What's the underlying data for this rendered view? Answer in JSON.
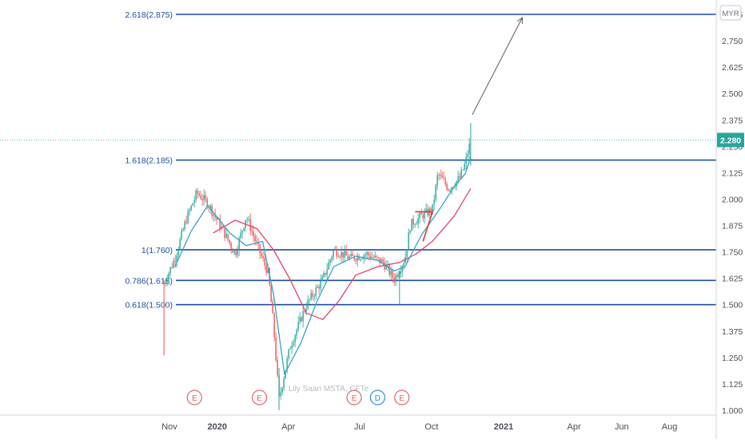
{
  "chart_data": {
    "type": "candlestick",
    "currency": "MYR",
    "last_price": {
      "value": 2.28,
      "label": "2.280"
    },
    "y_ticks": [
      "1.000",
      "1.125",
      "1.250",
      "1.375",
      "1.500",
      "1.625",
      "1.750",
      "1.875",
      "2.000",
      "2.125",
      "2.250",
      "2.375",
      "2.500",
      "2.625",
      "2.750",
      "2.875"
    ],
    "y_tick_values": [
      1.0,
      1.125,
      1.25,
      1.375,
      1.5,
      1.625,
      1.75,
      1.875,
      2.0,
      2.125,
      2.25,
      2.375,
      2.5,
      2.625,
      2.75,
      2.875
    ],
    "ylim": [
      0.98,
      2.93
    ],
    "x_labels": [
      {
        "label": "Nov",
        "date": "2019-11-01",
        "bold": false
      },
      {
        "label": "2020",
        "date": "2020-01-01",
        "bold": true
      },
      {
        "label": "Apr",
        "date": "2020-04-01",
        "bold": false
      },
      {
        "label": "Jul",
        "date": "2020-07-01",
        "bold": false
      },
      {
        "label": "Oct",
        "date": "2020-10-01",
        "bold": false
      },
      {
        "label": "2021",
        "date": "2021-01-01",
        "bold": true
      },
      {
        "label": "Apr",
        "date": "2021-04-01",
        "bold": false
      },
      {
        "label": "Jun",
        "date": "2021-06-01",
        "bold": false
      },
      {
        "label": "Aug",
        "date": "2021-08-01",
        "bold": false
      }
    ],
    "fib_levels": [
      {
        "label": "2.618(2.875)",
        "value": 2.875
      },
      {
        "label": "1.618(2.185)",
        "value": 2.185
      },
      {
        "label": "1(1.760)",
        "value": 1.76
      },
      {
        "label": "0.786(1.615)",
        "value": 1.615
      },
      {
        "label": "0.618(1.500)",
        "value": 1.5
      }
    ],
    "price_path": [
      [
        "2019-10-25",
        1.6
      ],
      [
        "2019-11-08",
        1.72
      ],
      [
        "2019-11-22",
        1.9
      ],
      [
        "2019-12-06",
        2.03
      ],
      [
        "2019-12-20",
        1.98
      ],
      [
        "2020-01-10",
        1.84
      ],
      [
        "2020-01-24",
        1.74
      ],
      [
        "2020-02-07",
        1.92
      ],
      [
        "2020-02-21",
        1.78
      ],
      [
        "2020-03-06",
        1.65
      ],
      [
        "2020-03-13",
        1.4
      ],
      [
        "2020-03-20",
        1.05
      ],
      [
        "2020-04-03",
        1.3
      ],
      [
        "2020-04-24",
        1.5
      ],
      [
        "2020-05-15",
        1.62
      ],
      [
        "2020-05-29",
        1.76
      ],
      [
        "2020-06-19",
        1.72
      ],
      [
        "2020-07-10",
        1.74
      ],
      [
        "2020-07-31",
        1.7
      ],
      [
        "2020-08-14",
        1.62
      ],
      [
        "2020-08-28",
        1.72
      ],
      [
        "2020-09-04",
        1.88
      ],
      [
        "2020-09-18",
        1.92
      ],
      [
        "2020-10-02",
        1.95
      ],
      [
        "2020-10-09",
        2.12
      ],
      [
        "2020-10-23",
        2.05
      ],
      [
        "2020-11-06",
        2.1
      ],
      [
        "2020-11-13",
        2.17
      ],
      [
        "2020-11-20",
        2.28
      ]
    ],
    "ma_fast": [
      [
        "2019-11-08",
        1.68
      ],
      [
        "2019-11-29",
        1.85
      ],
      [
        "2019-12-20",
        1.97
      ],
      [
        "2020-01-17",
        1.84
      ],
      [
        "2020-02-07",
        1.78
      ],
      [
        "2020-02-28",
        1.8
      ],
      [
        "2020-03-13",
        1.55
      ],
      [
        "2020-03-27",
        1.17
      ],
      [
        "2020-04-17",
        1.32
      ],
      [
        "2020-05-08",
        1.52
      ],
      [
        "2020-05-29",
        1.68
      ],
      [
        "2020-06-26",
        1.73
      ],
      [
        "2020-07-24",
        1.71
      ],
      [
        "2020-08-14",
        1.66
      ],
      [
        "2020-08-28",
        1.68
      ],
      [
        "2020-09-18",
        1.83
      ],
      [
        "2020-10-09",
        1.94
      ],
      [
        "2020-10-30",
        2.06
      ],
      [
        "2020-11-13",
        2.12
      ],
      [
        "2020-11-20",
        2.2
      ]
    ],
    "ma_slow": [
      [
        "2019-12-27",
        1.84
      ],
      [
        "2020-01-24",
        1.9
      ],
      [
        "2020-02-21",
        1.86
      ],
      [
        "2020-03-13",
        1.76
      ],
      [
        "2020-04-03",
        1.62
      ],
      [
        "2020-04-24",
        1.46
      ],
      [
        "2020-05-15",
        1.43
      ],
      [
        "2020-06-05",
        1.52
      ],
      [
        "2020-06-26",
        1.64
      ],
      [
        "2020-07-24",
        1.68
      ],
      [
        "2020-08-21",
        1.7
      ],
      [
        "2020-09-11",
        1.74
      ],
      [
        "2020-10-02",
        1.8
      ],
      [
        "2020-10-30",
        1.92
      ],
      [
        "2020-11-20",
        2.05
      ]
    ],
    "earnings_markers": [
      {
        "label": "E",
        "date": "2019-12-03",
        "color": "#e4636b"
      },
      {
        "label": "E",
        "date": "2020-02-24",
        "color": "#e4636b"
      },
      {
        "label": "E",
        "date": "2020-06-24",
        "color": "#e4636b"
      },
      {
        "label": "D",
        "date": "2020-07-24",
        "color": "#2e8fdc"
      },
      {
        "label": "E",
        "date": "2020-08-24",
        "color": "#e4636b"
      }
    ],
    "projection_arrow": {
      "from": [
        "2020-11-22",
        2.4
      ],
      "to": [
        "2021-01-25",
        2.86
      ]
    },
    "triangle_pattern": {
      "upper": [
        [
          "2020-09-10",
          1.94
        ],
        [
          "2020-10-01",
          1.94
        ]
      ],
      "lower": [
        [
          "2020-09-20",
          1.8
        ],
        [
          "2020-10-03",
          1.95
        ]
      ]
    },
    "watermark": "Lily Saari  MSTA, CFTe"
  },
  "colors": {
    "fib_line": "#1c4fa0",
    "fib_label": "#1c4fa0",
    "candle_up": "#26a69a",
    "candle_down": "#ef5350",
    "ma_fast": "#3aa0c8",
    "ma_slow": "#e0436b",
    "last_price_bg": "#26a69a",
    "last_price_dotted": "#26a69a",
    "axis_text": "#4a4e58",
    "pattern": "#d23b3b",
    "arrow": "#555a63"
  }
}
